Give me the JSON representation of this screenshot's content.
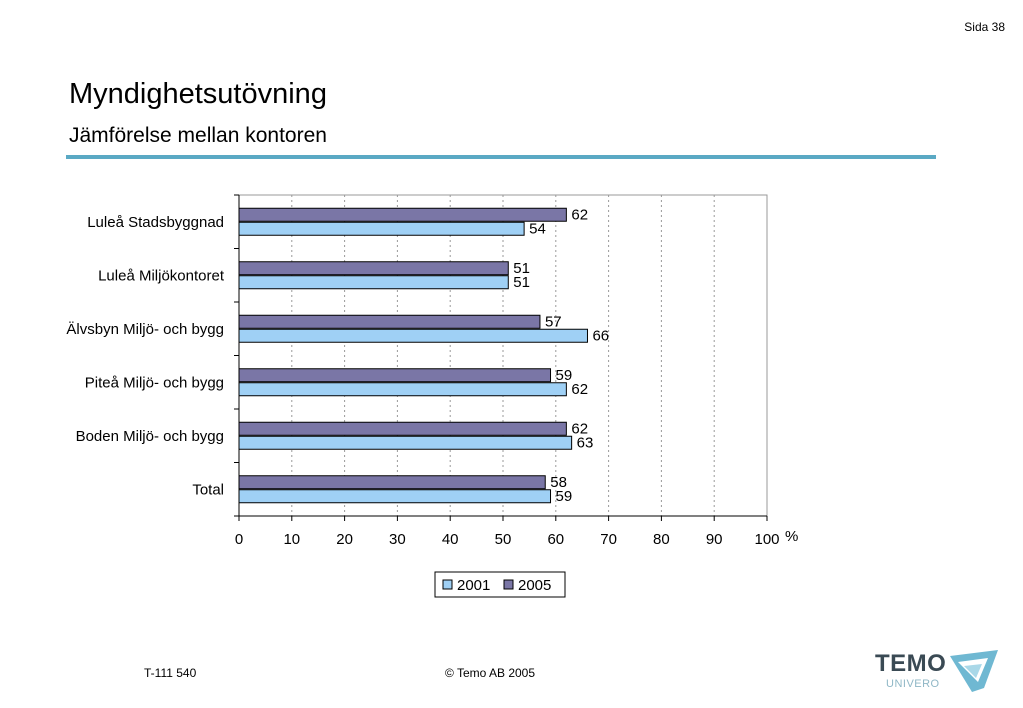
{
  "page": {
    "number_label": "Sida 38",
    "title": "Myndighetsutövning",
    "subtitle": "Jämförelse mellan kontoren"
  },
  "footer": {
    "code": "T-111 540",
    "copyright": "©  Temo AB 2005"
  },
  "logo": {
    "name": "TEMO",
    "sub": "UNIVERO"
  },
  "colors": {
    "accent_rule": "#5aa9c4",
    "series_2001": "#9fd0f5",
    "series_2005": "#7a76a6"
  },
  "chart_data": {
    "type": "bar",
    "orientation": "horizontal",
    "categories": [
      "Luleå Stadsbyggnad",
      "Luleå Miljökontoret",
      "Älvsbyn Miljö- och bygg",
      "Piteå Miljö- och bygg",
      "Boden Miljö- och bygg",
      "Total"
    ],
    "series": [
      {
        "name": "2005",
        "values": [
          62,
          51,
          57,
          59,
          62,
          58
        ]
      },
      {
        "name": "2001",
        "values": [
          54,
          51,
          66,
          62,
          63,
          59
        ]
      }
    ],
    "xlim": [
      0,
      100
    ],
    "xticks": [
      0,
      10,
      20,
      30,
      40,
      50,
      60,
      70,
      80,
      90,
      100
    ],
    "xunit": "%",
    "grid": "vertical dashed",
    "legend": {
      "position": "bottom-center",
      "entries": [
        "2001",
        "2005"
      ]
    }
  }
}
